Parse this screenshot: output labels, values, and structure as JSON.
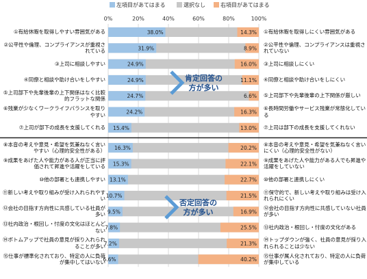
{
  "legend": {
    "left": {
      "label": "左項目があてはまる",
      "color": "#9dc3e6"
    },
    "neutral": {
      "label": "選択なし",
      "color": "#c8c8c8"
    },
    "right": {
      "label": "右項目があてはまる",
      "color": "#f4b183"
    }
  },
  "callouts": {
    "positive": [
      "肯定回答の",
      "方が多い"
    ],
    "negative": [
      "否定回答の",
      "方が多い"
    ]
  },
  "colors": {
    "callout": "#1f4e8c",
    "arrow": "#5b9bd5",
    "divider": "#222222"
  },
  "chart_data": {
    "type": "bar",
    "stacked": true,
    "orientation": "horizontal",
    "xlim": [
      0,
      100
    ],
    "ticks": [
      "0%",
      "20%",
      "40%",
      "60%",
      "80%",
      "100%"
    ],
    "tick_values": [
      0,
      20,
      40,
      60,
      80,
      100
    ],
    "grid": true,
    "legend_position": "top",
    "rows": [
      {
        "left_label": "①有給休暇を取得しやすい雰囲気がある",
        "right_label": "①有給休暇を取得しにくい雰囲気がある",
        "left": 38.0,
        "right": 14.3,
        "left_text": "38.0%",
        "right_text": "14.3%"
      },
      {
        "left_label": "②公平性や倫理、コンプライアンスが重視されている",
        "right_label": "②公平性や倫理、コンプライアンスは重視されていない",
        "left": 31.9,
        "right": 8.9,
        "left_text": "31.9%",
        "right_text": "8.9%"
      },
      {
        "left_label": "③上司に相談しやすい",
        "right_label": "③上司に相談しにくい",
        "left": 24.9,
        "right": 16.0,
        "left_text": "24.9%",
        "right_text": "16.0%"
      },
      {
        "left_label": "④同僚と相談や助け合いをしやすい",
        "right_label": "④同僚と相談や助け合いをしにくい",
        "left": 24.9,
        "right": 11.1,
        "left_text": "24.9%",
        "right_text": "11.1%"
      },
      {
        "left_label": "⑤上司部下や先輩後輩の上下関係はなく比較的フラットな関係",
        "right_label": "⑤上司部下や先輩後輩の上下関係が厳しい",
        "left": 24.7,
        "right": 6.6,
        "left_text": "24.7%",
        "right_text": "6.6%"
      },
      {
        "left_label": "⑥残業が少なくワークライフバランスを取りやすい",
        "right_label": "⑥長時間労働やサービス残業が常態化している",
        "left": 24.2,
        "right": 16.3,
        "left_text": "24.2%",
        "right_text": "16.3%"
      },
      {
        "left_label": "⑦上司が部下の成長を支援してくれる",
        "right_label": "⑦上司は部下の成長を支援してくれない",
        "left": 15.4,
        "right": 13.0,
        "left_text": "15.4%",
        "right_text": "13.0%"
      },
      {
        "left_label": "⑧本音の考えや意見・希望を気兼ねなく言いやすい（心理的安全性がある）",
        "right_label": "⑧本音の考えや意見・希望を気兼ねなく言いにくい（心理的安全性がない）",
        "left": 16.3,
        "right": 20.2,
        "left_text": "16.3%",
        "right_text": "20.2%"
      },
      {
        "left_label": "⑨成果をあげた人や能力がある人が正当に評価されて昇進や活躍をしている",
        "right_label": "⑨成果をあげた人や能力がある人でも昇進や活躍をしていない",
        "left": 15.3,
        "right": 22.1,
        "left_text": "15.3%",
        "right_text": "22.1%"
      },
      {
        "left_label": "⑩他の部署とも連携しやすい",
        "right_label": "⑩他の部署と連携しにくい",
        "left": 13.1,
        "right": 22.7,
        "left_text": "13.1%",
        "right_text": "22.7%"
      },
      {
        "left_label": "⑪新しい考えや取り組みが受け入れられやすい",
        "right_label": "⑪保守的で、新しい考えや取り組みは受け入れられにくい",
        "left": 10.7,
        "right": 21.5,
        "left_text": "10.7%",
        "right_text": "21.5%"
      },
      {
        "left_label": "⑫会社の目指す方向性に共感している社員が多い",
        "right_label": "⑫会社の目指す方向性に共感していない社員が多い",
        "left": 9.5,
        "right": 16.9,
        "left_text": "9.5%",
        "right_text": "16.9%"
      },
      {
        "left_label": "⑬社内政治・根回し・忖度の文化はほとんどない",
        "right_label": "⑬社内政治・根回し・忖度の文化がある",
        "left": 7.8,
        "right": 25.5,
        "left_text": "7.8%",
        "right_text": "25.5%"
      },
      {
        "left_label": "⑭ボトムアップで社員の意見が採り入れられることが多い",
        "right_label": "⑭トップダウンが強く、社員の意見が採り入れられることは少ない",
        "left": 7.2,
        "right": 21.3,
        "left_text": "7.2%",
        "right_text": "21.3%"
      },
      {
        "left_label": "⑮仕事が標準化されており、特定の人に負荷が集中してはいない",
        "right_label": "⑮仕事が属人化されており、特定の人に負荷が集中している",
        "left": 6.6,
        "right": 40.2,
        "left_text": "6.6%",
        "right_text": "40.2%"
      }
    ]
  }
}
